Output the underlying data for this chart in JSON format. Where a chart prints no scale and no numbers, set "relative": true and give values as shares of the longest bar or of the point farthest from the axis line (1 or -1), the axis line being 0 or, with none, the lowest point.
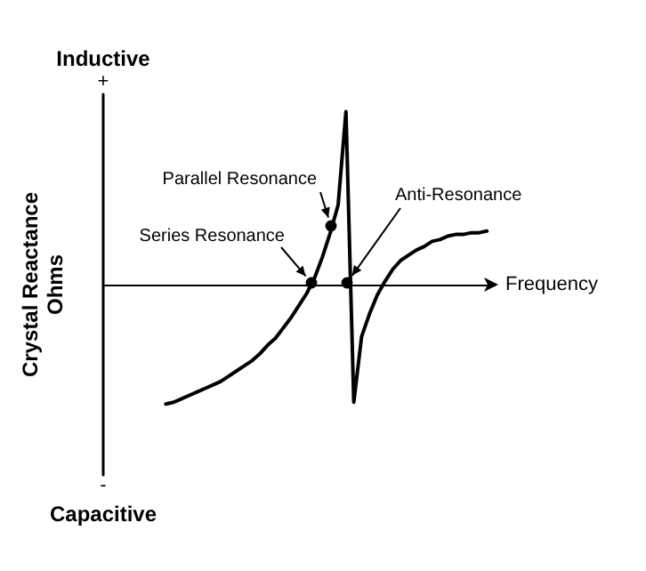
{
  "chart_data": {
    "type": "line",
    "relative": true,
    "xlabel": "Frequency",
    "ylabel": "Crystal Reactance Ohms",
    "grid": false,
    "annotations": [
      "Inductive",
      "+",
      "-",
      "Capacitive",
      "Parallel Resonance",
      "Series Resonance",
      "Anti-Resonance"
    ],
    "categories": [
      null,
      null,
      null,
      null,
      null,
      null,
      null,
      null,
      null,
      null,
      null,
      null,
      null,
      null,
      null,
      null,
      null,
      null,
      null,
      null,
      null,
      null,
      null,
      null,
      null,
      null,
      null,
      null,
      null,
      null,
      null,
      null,
      null,
      null,
      null,
      null,
      null,
      null,
      null,
      null,
      null,
      null,
      null,
      null,
      null,
      null,
      null,
      null,
      null,
      null,
      null
    ],
    "series": [
      {
        "color": "#000000",
        "line_style": "solid",
        "values": [
          null,
          null,
          null,
          null,
          null,
          null,
          null,
          null,
          -0.69,
          -0.68,
          -0.66,
          -0.64,
          -0.62,
          -0.6,
          -0.58,
          -0.56,
          -0.53,
          -0.5,
          -0.47,
          -0.44,
          -0.4,
          -0.35,
          -0.31,
          -0.25,
          -0.19,
          -0.12,
          -0.05,
          0.04,
          0.16,
          0.3,
          0.46,
          1,
          -0.68,
          -0.3,
          -0.17,
          -0.06,
          0.02,
          0.09,
          0.14,
          0.17,
          0.2,
          0.22,
          0.25,
          0.26,
          0.28,
          0.29,
          0.29,
          0.3,
          0.3,
          0.31,
          null
        ]
      }
    ]
  }
}
